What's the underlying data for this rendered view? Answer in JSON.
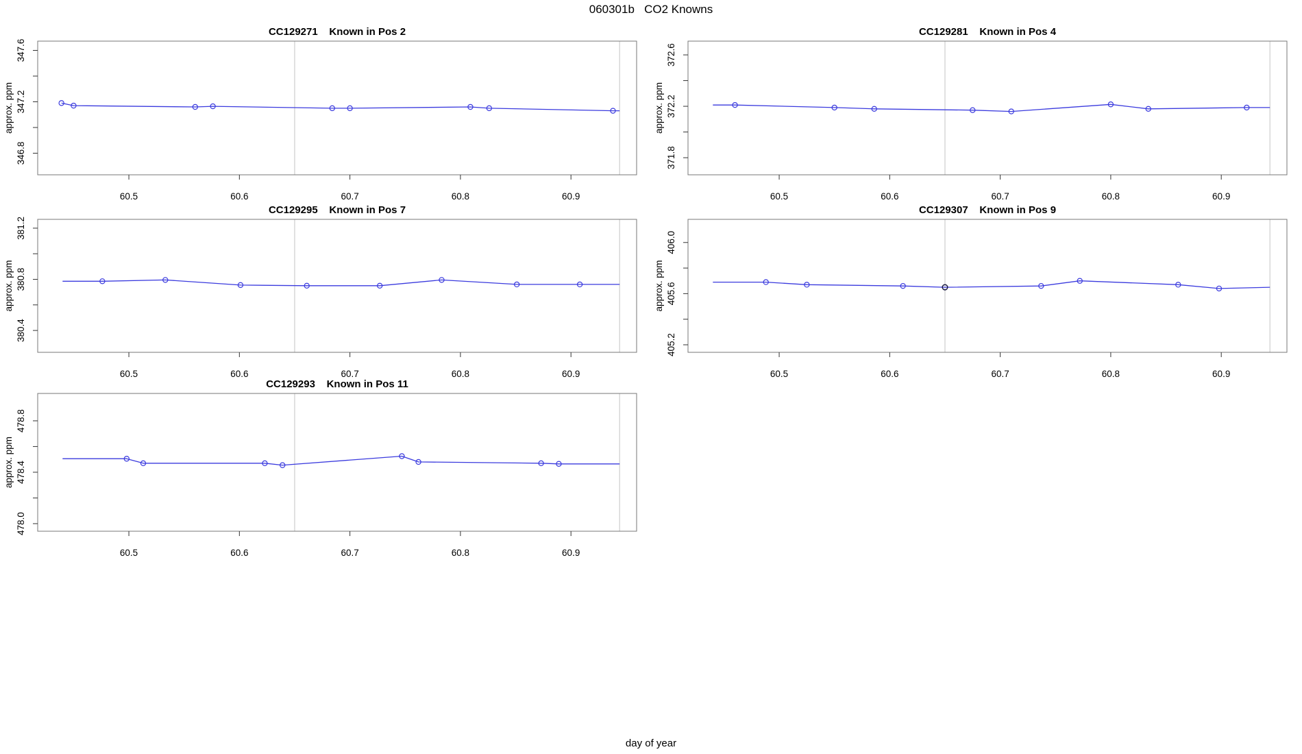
{
  "header": {
    "title": "060301b   CO2 Knowns"
  },
  "figure": {
    "xlabel": "day of year",
    "ylabel": "approx. ppm"
  },
  "chart_data": {
    "type": "line",
    "figure_title": "060301b   CO2 Knowns",
    "xlabel": "day of year",
    "ylabel": "approx. ppm",
    "grid": "off",
    "legend": "none",
    "xlim": [
      60.4175,
      60.9594
    ],
    "x_tick_values": [
      60.5,
      60.6,
      60.7,
      60.8,
      60.9
    ],
    "x_tick_labels": [
      "60.5",
      "60.6",
      "60.7",
      "60.8",
      "60.9"
    ],
    "vlines": [
      60.65,
      60.944
    ],
    "colors": {
      "line": "#3a3ade",
      "marker": "#3a3ade",
      "special_marker": "#1a1a40",
      "vline": "#c4c4c4",
      "box": "#777777",
      "tick": "#333333",
      "text": "#000000"
    },
    "charts": [
      {
        "id": "CC129271",
        "title": "CC129271    Known in Pos 2",
        "col": 0,
        "row": 0,
        "ylim": [
          346.632,
          347.672
        ],
        "y_tick_values": [
          346.8,
          347.2,
          347.6
        ],
        "y_tick_labels": [
          "346.8",
          "347.2",
          "347.6"
        ],
        "y_minor_tick_values": [
          347.0,
          347.4
        ],
        "line": [
          [
            60.439,
            347.19
          ],
          [
            60.45,
            347.17
          ],
          [
            60.56,
            347.16
          ],
          [
            60.576,
            347.165
          ],
          [
            60.684,
            347.15
          ],
          [
            60.7,
            347.15
          ],
          [
            60.809,
            347.16
          ],
          [
            60.826,
            347.15
          ],
          [
            60.938,
            347.13
          ],
          [
            60.944,
            347.13
          ]
        ],
        "points": [
          [
            60.439,
            347.19
          ],
          [
            60.45,
            347.17
          ],
          [
            60.56,
            347.16
          ],
          [
            60.576,
            347.165
          ],
          [
            60.684,
            347.15
          ],
          [
            60.7,
            347.15
          ],
          [
            60.809,
            347.16
          ],
          [
            60.826,
            347.15
          ],
          [
            60.938,
            347.13
          ]
        ],
        "special_points": []
      },
      {
        "id": "CC129281",
        "title": "CC129281    Known in Pos 4",
        "col": 1,
        "row": 0,
        "ylim": [
          371.667,
          372.707
        ],
        "y_tick_values": [
          371.8,
          372.2,
          372.6
        ],
        "y_tick_labels": [
          "371.8",
          "372.2",
          "372.6"
        ],
        "y_minor_tick_values": [
          372.0,
          372.4
        ],
        "line": [
          [
            60.44,
            372.21
          ],
          [
            60.46,
            372.21
          ],
          [
            60.55,
            372.19
          ],
          [
            60.586,
            372.18
          ],
          [
            60.675,
            372.17
          ],
          [
            60.71,
            372.16
          ],
          [
            60.8,
            372.215
          ],
          [
            60.834,
            372.18
          ],
          [
            60.923,
            372.19
          ],
          [
            60.944,
            372.19
          ]
        ],
        "points": [
          [
            60.46,
            372.21
          ],
          [
            60.55,
            372.19
          ],
          [
            60.586,
            372.18
          ],
          [
            60.675,
            372.17
          ],
          [
            60.71,
            372.16
          ],
          [
            60.8,
            372.215
          ],
          [
            60.834,
            372.18
          ],
          [
            60.923,
            372.19
          ]
        ],
        "special_points": []
      },
      {
        "id": "CC129295",
        "title": "CC129295    Known in Pos 7",
        "col": 0,
        "row": 1,
        "ylim": [
          380.229,
          381.269
        ],
        "y_tick_values": [
          380.4,
          380.8,
          381.2
        ],
        "y_tick_labels": [
          "380.4",
          "380.8",
          "381.2"
        ],
        "y_minor_tick_values": [
          380.6,
          381.0
        ],
        "line": [
          [
            60.44,
            380.785
          ],
          [
            60.476,
            380.785
          ],
          [
            60.533,
            380.795
          ],
          [
            60.601,
            380.755
          ],
          [
            60.661,
            380.75
          ],
          [
            60.727,
            380.75
          ],
          [
            60.783,
            380.795
          ],
          [
            60.851,
            380.76
          ],
          [
            60.908,
            380.76
          ],
          [
            60.944,
            380.76
          ]
        ],
        "points": [
          [
            60.476,
            380.785
          ],
          [
            60.533,
            380.795
          ],
          [
            60.601,
            380.755
          ],
          [
            60.661,
            380.75
          ],
          [
            60.727,
            380.75
          ],
          [
            60.783,
            380.795
          ],
          [
            60.851,
            380.76
          ],
          [
            60.908,
            380.76
          ]
        ],
        "special_points": []
      },
      {
        "id": "CC129307",
        "title": "CC129307    Known in Pos 9",
        "col": 1,
        "row": 1,
        "ylim": [
          405.141,
          406.181
        ],
        "y_tick_values": [
          405.2,
          405.6,
          406.0
        ],
        "y_tick_labels": [
          "405.2",
          "405.6",
          "406.0"
        ],
        "y_minor_tick_values": [
          405.4,
          405.8
        ],
        "line": [
          [
            60.44,
            405.69
          ],
          [
            60.488,
            405.69
          ],
          [
            60.525,
            405.67
          ],
          [
            60.612,
            405.66
          ],
          [
            60.65,
            405.65
          ],
          [
            60.737,
            405.66
          ],
          [
            60.772,
            405.7
          ],
          [
            60.861,
            405.67
          ],
          [
            60.898,
            405.64
          ],
          [
            60.944,
            405.65
          ]
        ],
        "points": [
          [
            60.488,
            405.69
          ],
          [
            60.525,
            405.67
          ],
          [
            60.612,
            405.66
          ],
          [
            60.737,
            405.66
          ],
          [
            60.772,
            405.7
          ],
          [
            60.861,
            405.67
          ],
          [
            60.898,
            405.64
          ]
        ],
        "special_points": [
          [
            60.65,
            405.65
          ]
        ]
      },
      {
        "id": "CC129293",
        "title": "CC129293    Known in Pos 11",
        "col": 0,
        "row": 2,
        "ylim": [
          477.941,
          479.013
        ],
        "y_tick_values": [
          478.0,
          478.4,
          478.8
        ],
        "y_tick_labels": [
          "478.0",
          "478.4",
          "478.8"
        ],
        "y_minor_tick_values": [
          478.2,
          478.6
        ],
        "line": [
          [
            60.44,
            478.505
          ],
          [
            60.498,
            478.505
          ],
          [
            60.513,
            478.47
          ],
          [
            60.623,
            478.47
          ],
          [
            60.639,
            478.455
          ],
          [
            60.747,
            478.525
          ],
          [
            60.762,
            478.48
          ],
          [
            60.873,
            478.47
          ],
          [
            60.889,
            478.465
          ],
          [
            60.944,
            478.465
          ]
        ],
        "points": [
          [
            60.498,
            478.505
          ],
          [
            60.513,
            478.47
          ],
          [
            60.623,
            478.47
          ],
          [
            60.639,
            478.455
          ],
          [
            60.747,
            478.525
          ],
          [
            60.762,
            478.48
          ],
          [
            60.873,
            478.47
          ],
          [
            60.889,
            478.465
          ]
        ],
        "special_points": []
      }
    ]
  }
}
